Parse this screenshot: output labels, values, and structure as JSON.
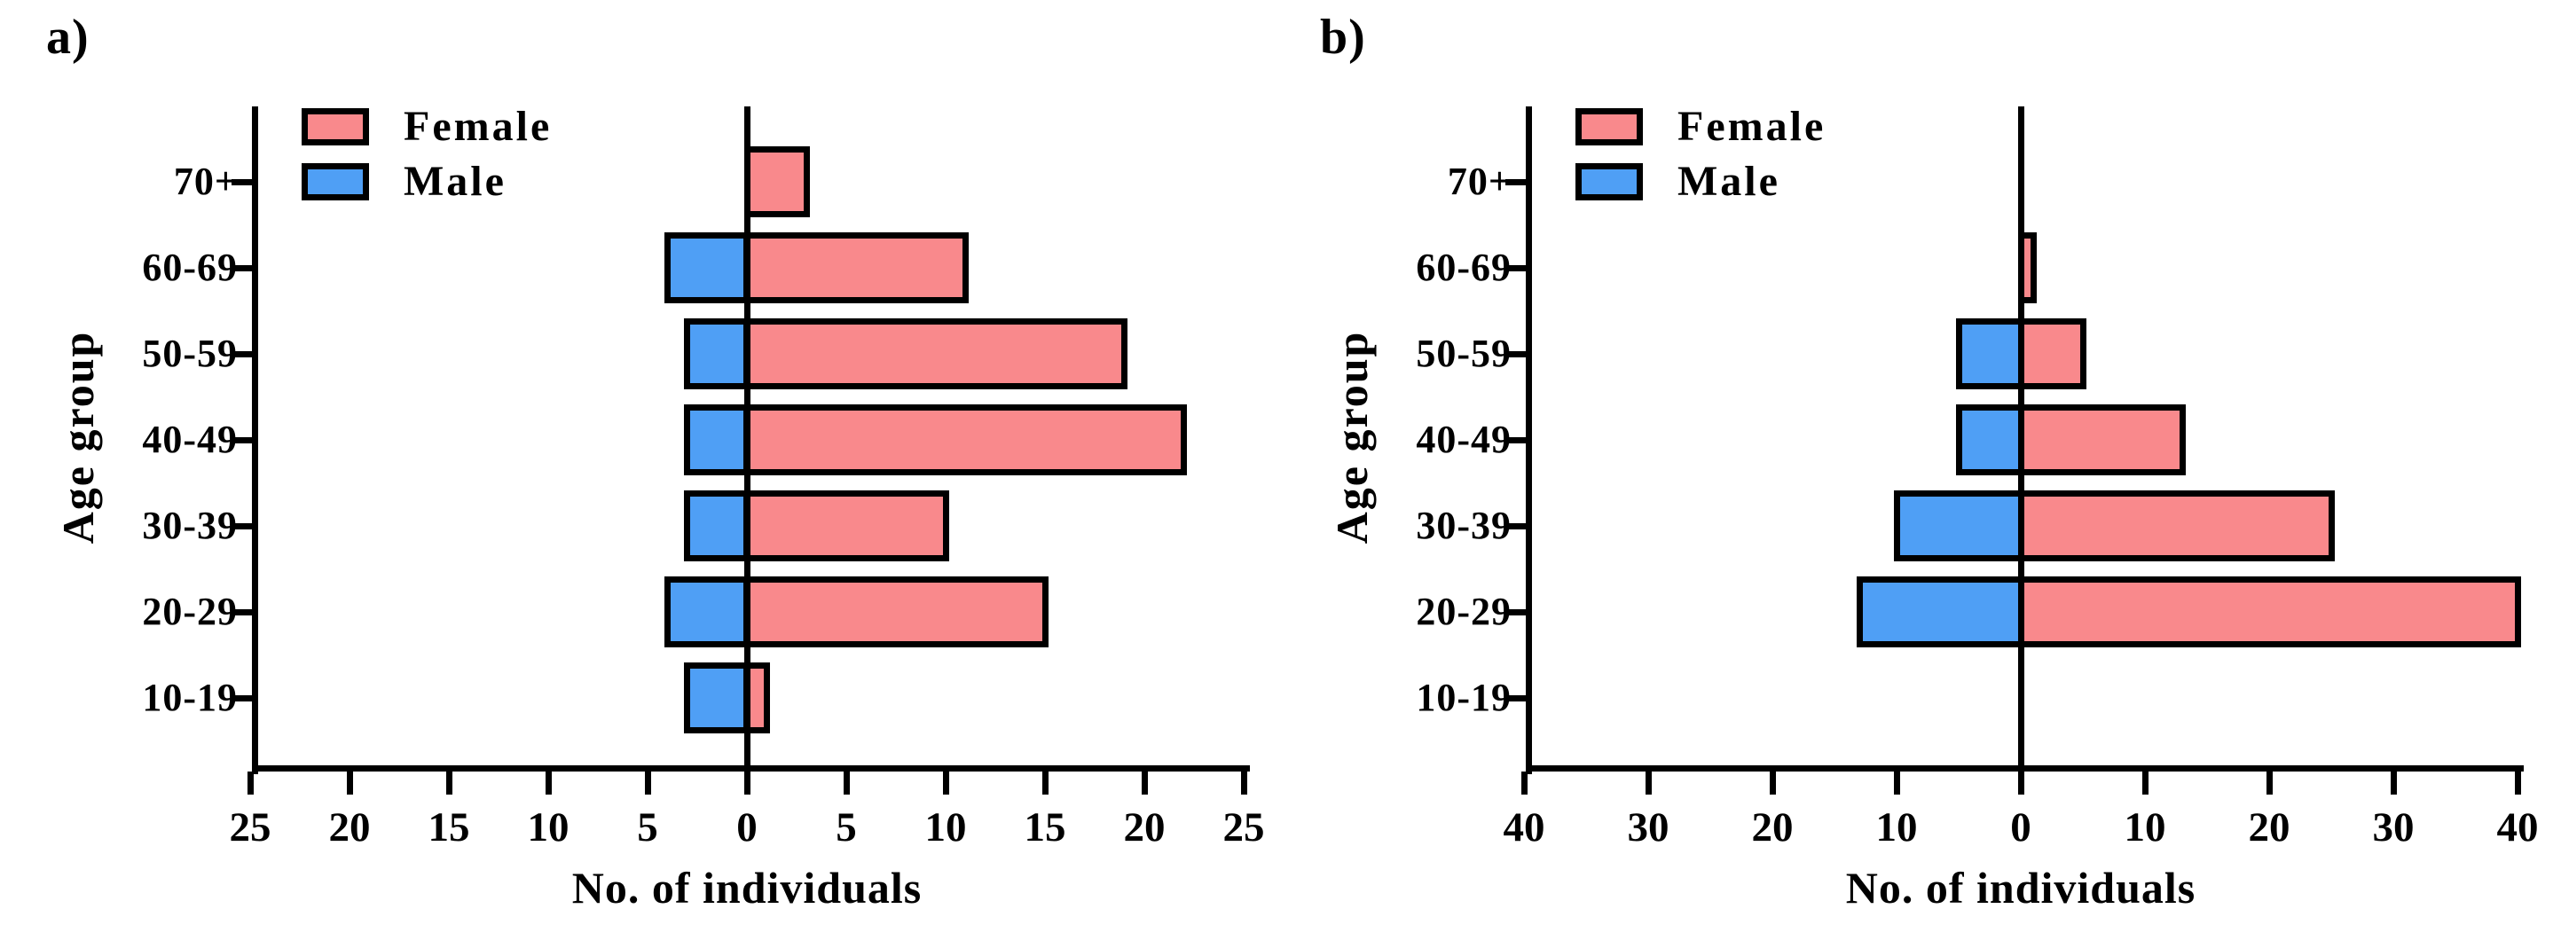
{
  "figure": {
    "background": "#ffffff",
    "colors": {
      "female": "#F9898C",
      "male": "#4F9FF5",
      "axis": "#000000"
    },
    "legend": {
      "female_label": "Female",
      "male_label": "Male"
    }
  },
  "chart_data": [
    {
      "type": "bar",
      "subtype": "horizontal-population-pyramid",
      "panel_label": "a)",
      "xlabel": "No. of individuals",
      "ylabel": "Age group",
      "categories": [
        "70+",
        "60-69",
        "50-59",
        "40-49",
        "30-39",
        "20-29",
        "10-19"
      ],
      "series": [
        {
          "name": "Female",
          "side": "right",
          "color": "#F9898C",
          "values": [
            3,
            11,
            19,
            22,
            10,
            15,
            1
          ]
        },
        {
          "name": "Male",
          "side": "left",
          "color": "#4F9FF5",
          "values": [
            0,
            4,
            3,
            3,
            3,
            4,
            3
          ]
        }
      ],
      "xlim": [
        -25,
        25
      ],
      "tick_step": 5,
      "xticklabels": [
        "25",
        "20",
        "15",
        "10",
        "5",
        "0",
        "5",
        "10",
        "15",
        "20",
        "25"
      ],
      "grid": false,
      "legend_position": "upper-left-inside"
    },
    {
      "type": "bar",
      "subtype": "horizontal-population-pyramid",
      "panel_label": "b)",
      "xlabel": "No. of individuals",
      "ylabel": "Age group",
      "categories": [
        "70+",
        "60-69",
        "50-59",
        "40-49",
        "30-39",
        "20-29",
        "10-19"
      ],
      "series": [
        {
          "name": "Female",
          "side": "right",
          "color": "#F9898C",
          "values": [
            0,
            1,
            5,
            13,
            25,
            40,
            0
          ]
        },
        {
          "name": "Male",
          "side": "left",
          "color": "#4F9FF5",
          "values": [
            0,
            0,
            5,
            5,
            10,
            13,
            0
          ]
        }
      ],
      "xlim": [
        -40,
        40
      ],
      "tick_step": 10,
      "xticklabels": [
        "40",
        "30",
        "20",
        "10",
        "0",
        "10",
        "20",
        "30",
        "40"
      ],
      "grid": false,
      "legend_position": "upper-left-inside"
    }
  ]
}
